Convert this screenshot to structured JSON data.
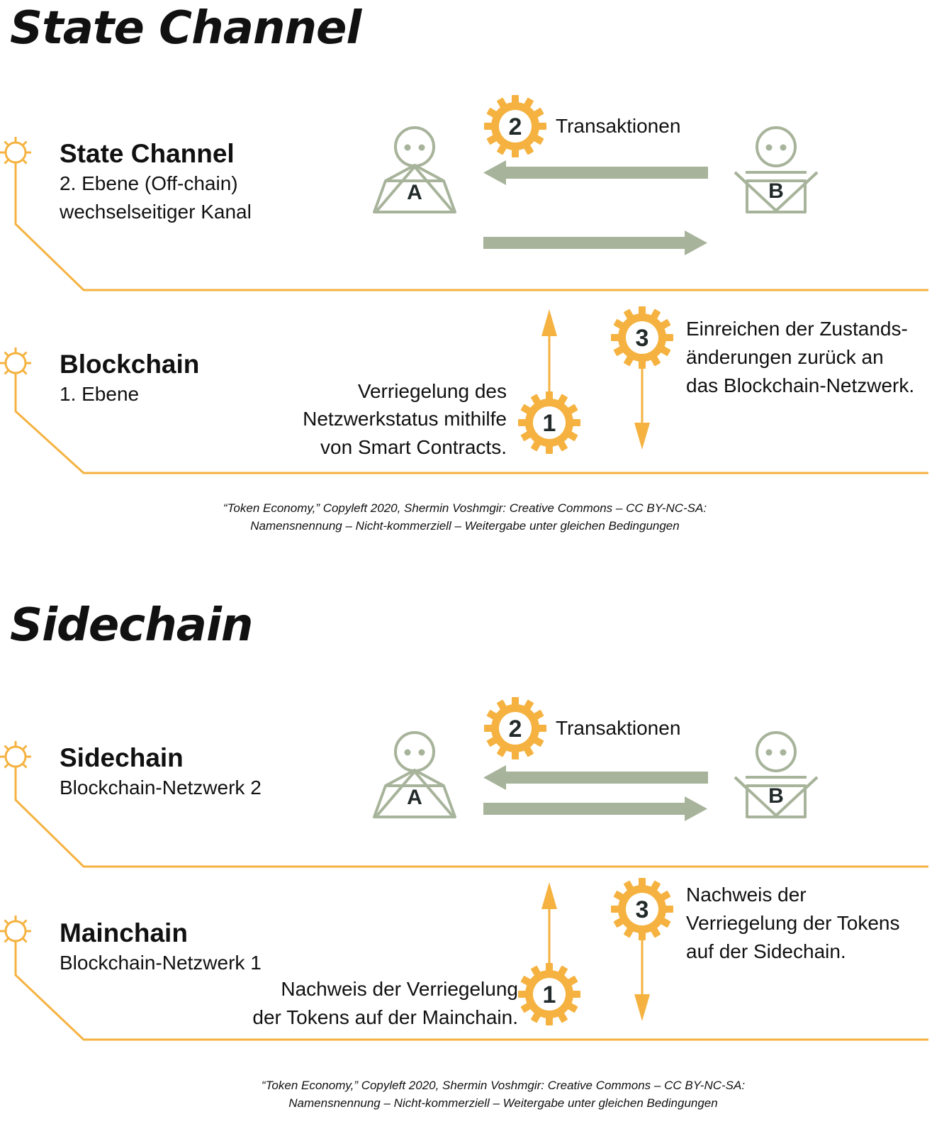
{
  "colors": {
    "orange": "#f5b240",
    "sage": "#a7b39a",
    "dark": "#222a2a"
  },
  "state_channel": {
    "title": "State Channel",
    "upper_layer": {
      "heading": "State Channel",
      "line1": "2. Ebene (Off-chain)",
      "line2": "wechselseitiger Kanal"
    },
    "lower_layer": {
      "heading": "Blockchain",
      "line1": "1. Ebene"
    },
    "actor_a": "A",
    "actor_b": "B",
    "step1": {
      "number": "1",
      "lines": [
        "Verriegelung des",
        "Netzwerkstatus mithilfe",
        "von Smart Contracts."
      ]
    },
    "step2": {
      "number": "2",
      "label": "Transaktionen"
    },
    "step3": {
      "number": "3",
      "lines": [
        "Einreichen der Zustands-",
        "änderungen zurück an",
        "das Blockchain-Netzwerk."
      ]
    },
    "credit": [
      "“Token Economy,” Copyleft 2020, Shermin Voshmgir: Creative Commons – CC BY-NC-SA:",
      "Namensnennung – Nicht-kommerziell – Weitergabe unter gleichen Bedingungen"
    ]
  },
  "sidechain": {
    "title": "Sidechain",
    "upper_layer": {
      "heading": "Sidechain",
      "line1": "Blockchain-Netzwerk 2"
    },
    "lower_layer": {
      "heading": "Mainchain",
      "line1": "Blockchain-Netzwerk 1"
    },
    "actor_a": "A",
    "actor_b": "B",
    "step1": {
      "number": "1",
      "lines": [
        "Nachweis der Verriegelung",
        "der Tokens auf der Mainchain."
      ]
    },
    "step2": {
      "number": "2",
      "label": "Transaktionen"
    },
    "step3": {
      "number": "3",
      "lines": [
        "Nachweis der",
        "Verriegelung der Tokens",
        "auf der Sidechain."
      ]
    },
    "credit": [
      "“Token Economy,” Copyleft 2020, Shermin Voshmgir: Creative Commons – CC BY-NC-SA:",
      "Namensnennung – Nicht-kommerziell – Weitergabe unter gleichen Bedingungen"
    ]
  }
}
